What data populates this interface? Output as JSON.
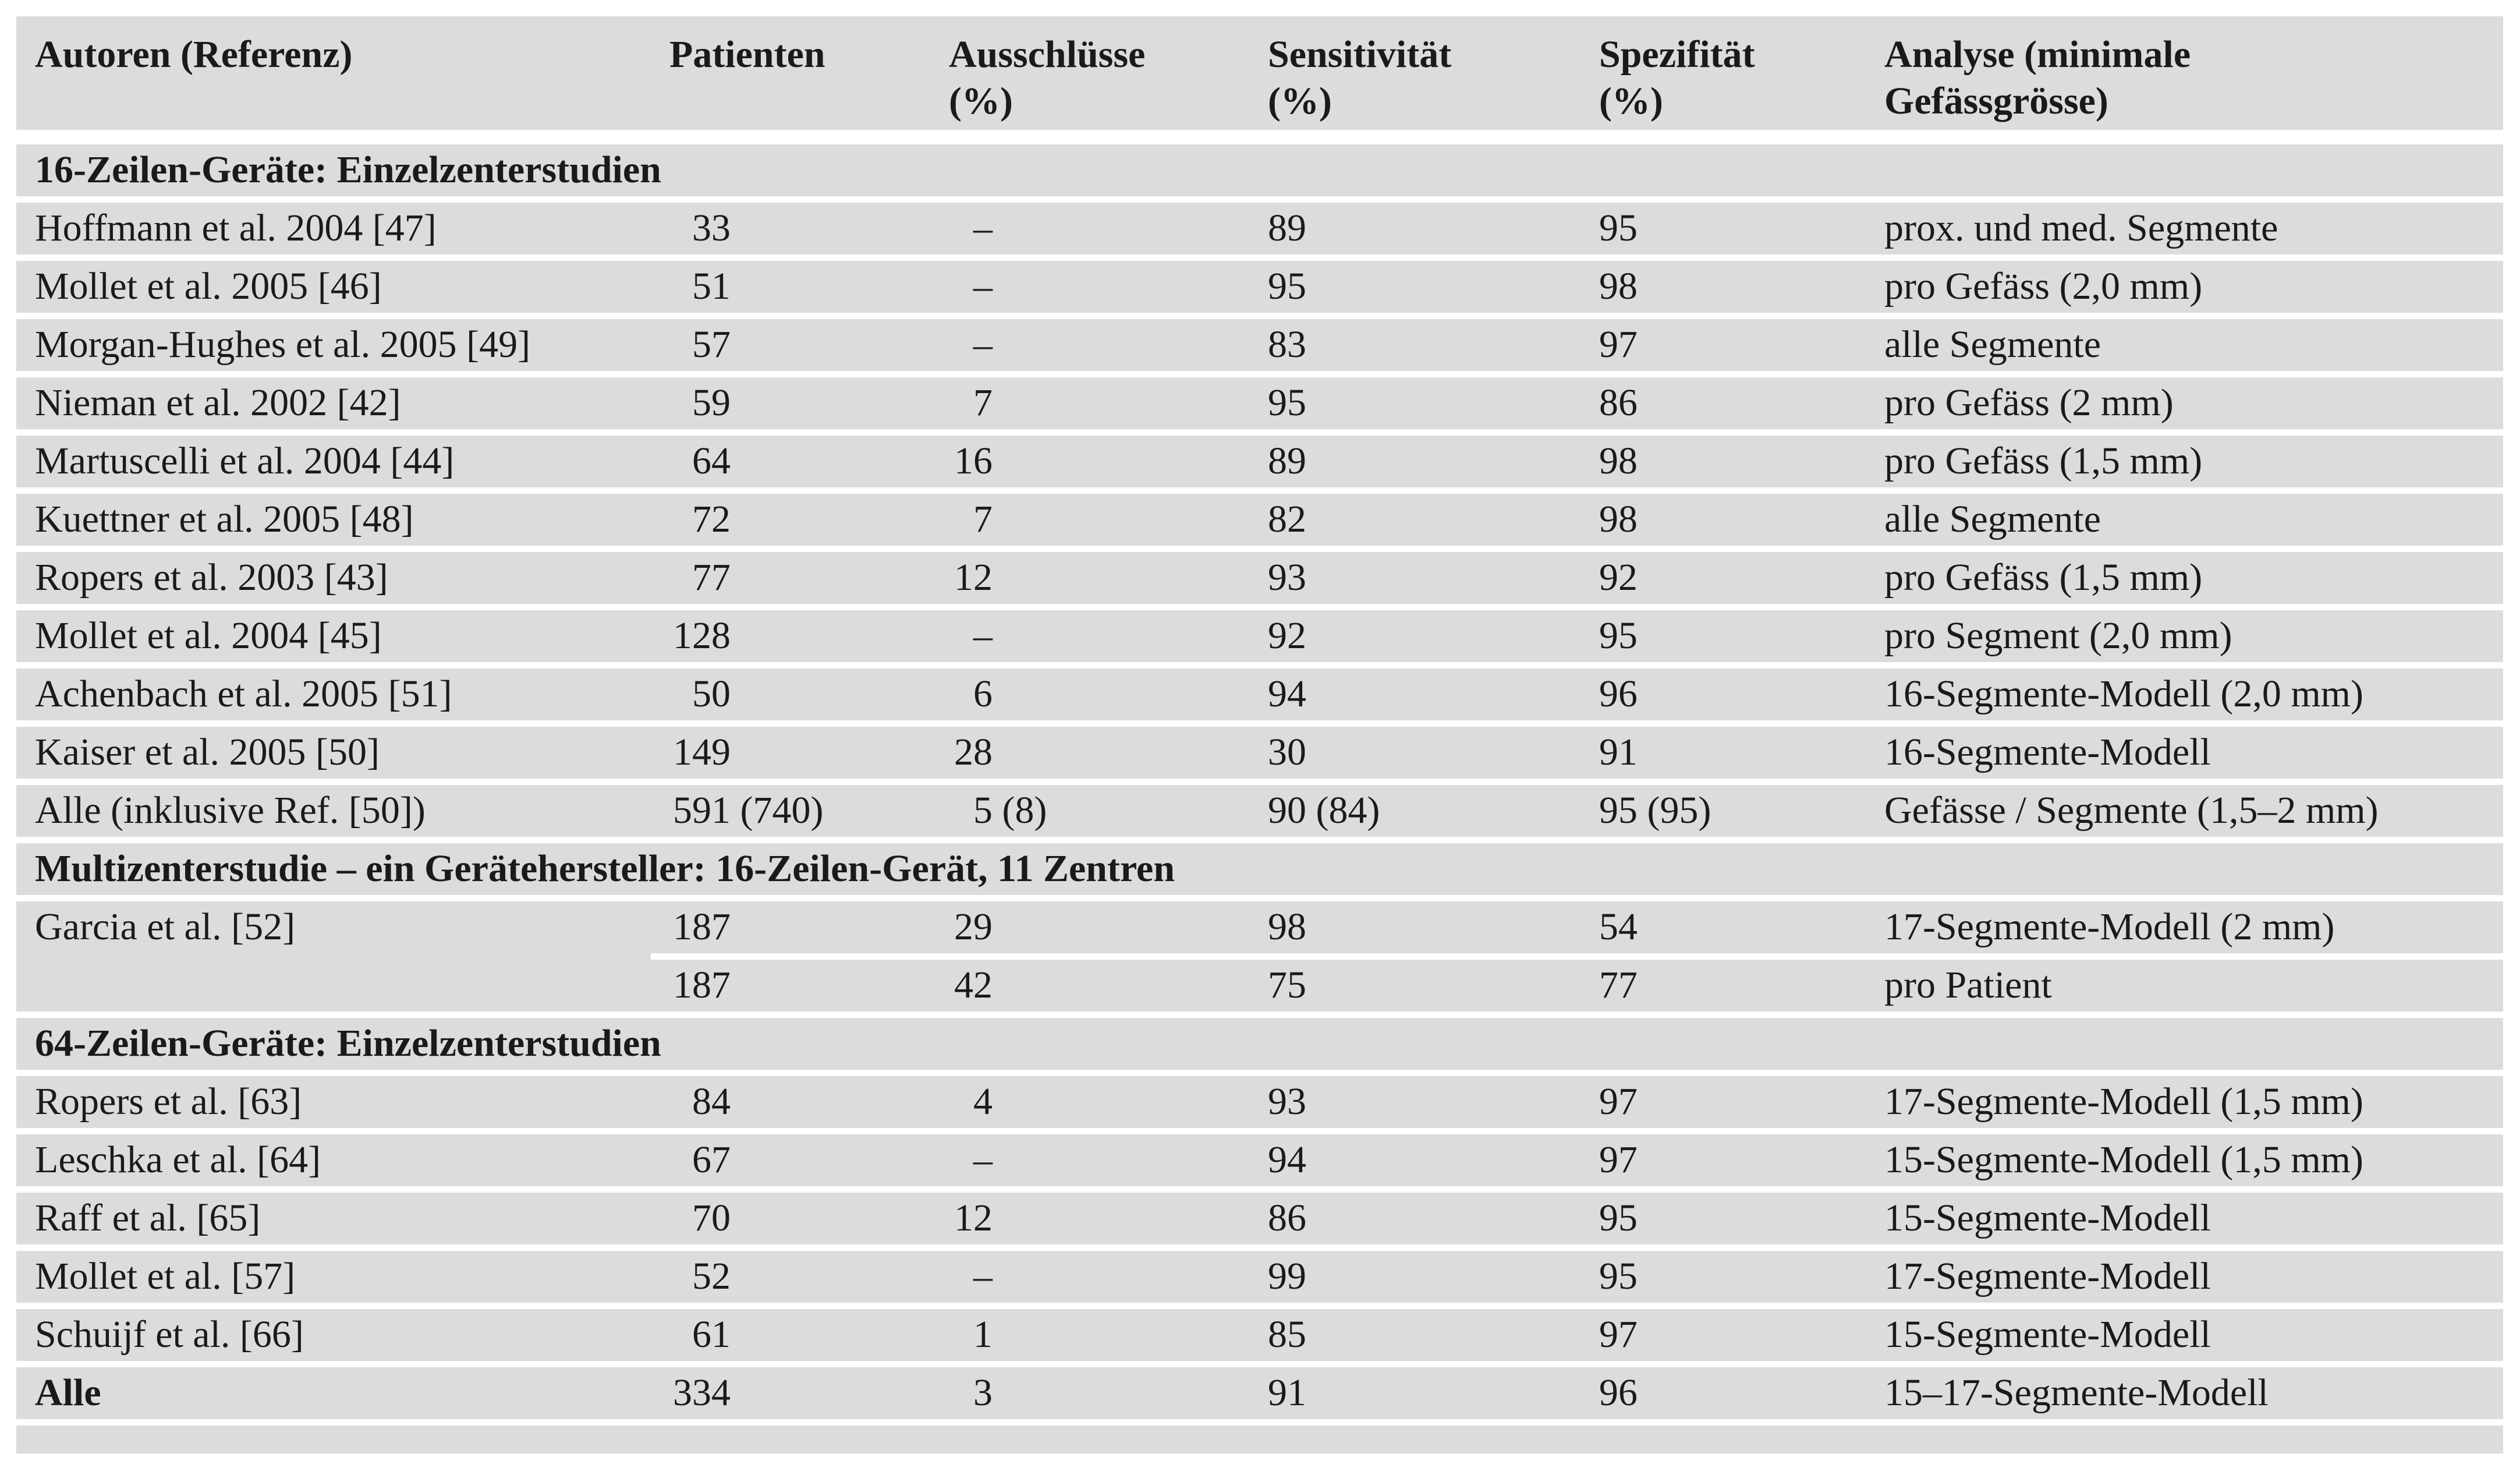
{
  "colors": {
    "row_background": "#dcdcdc",
    "page_background": "#ffffff",
    "text": "#1a1a1a"
  },
  "table": {
    "header": [
      {
        "lines": [
          "Autoren (Referenz)"
        ]
      },
      {
        "lines": [
          "Patienten"
        ]
      },
      {
        "lines": [
          "Ausschlüsse",
          "(%)"
        ]
      },
      {
        "lines": [
          "Sensitivität",
          "(%)"
        ]
      },
      {
        "lines": [
          "Spezifität",
          "(%)"
        ]
      },
      {
        "lines": [
          "Analyse (minimale",
          "Gefässgrösse)"
        ]
      }
    ],
    "rows": [
      {
        "type": "section",
        "label": "16-Zeilen-Geräte: Einzelzenterstudien"
      },
      {
        "type": "data",
        "author": "Hoffmann et al. 2004 [47]",
        "patienten": {
          "main": "33",
          "suffix": ""
        },
        "ausschluesse": {
          "main": "–",
          "suffix": ""
        },
        "sensitivitaet": "89",
        "spezifitaet": "95",
        "analyse": "prox. und med. Segmente"
      },
      {
        "type": "data",
        "author": "Mollet et al. 2005 [46]",
        "patienten": {
          "main": "51",
          "suffix": ""
        },
        "ausschluesse": {
          "main": "–",
          "suffix": ""
        },
        "sensitivitaet": "95",
        "spezifitaet": "98",
        "analyse": "pro Gefäss (2,0 mm)"
      },
      {
        "type": "data",
        "author": "Morgan-Hughes et al. 2005 [49]",
        "patienten": {
          "main": "57",
          "suffix": ""
        },
        "ausschluesse": {
          "main": "–",
          "suffix": ""
        },
        "sensitivitaet": "83",
        "spezifitaet": "97",
        "analyse": "alle Segmente"
      },
      {
        "type": "data",
        "author": "Nieman et al. 2002 [42]",
        "patienten": {
          "main": "59",
          "suffix": ""
        },
        "ausschluesse": {
          "main": "7",
          "suffix": ""
        },
        "sensitivitaet": "95",
        "spezifitaet": "86",
        "analyse": "pro Gefäss (2 mm)"
      },
      {
        "type": "data",
        "author": "Martuscelli et al. 2004 [44]",
        "patienten": {
          "main": "64",
          "suffix": ""
        },
        "ausschluesse": {
          "main": "16",
          "suffix": ""
        },
        "sensitivitaet": "89",
        "spezifitaet": "98",
        "analyse": "pro Gefäss (1,5 mm)"
      },
      {
        "type": "data",
        "author": "Kuettner et al. 2005 [48]",
        "patienten": {
          "main": "72",
          "suffix": ""
        },
        "ausschluesse": {
          "main": "7",
          "suffix": ""
        },
        "sensitivitaet": "82",
        "spezifitaet": "98",
        "analyse": "alle Segmente"
      },
      {
        "type": "data",
        "author": "Ropers et al. 2003 [43]",
        "patienten": {
          "main": "77",
          "suffix": ""
        },
        "ausschluesse": {
          "main": "12",
          "suffix": ""
        },
        "sensitivitaet": "93",
        "spezifitaet": "92",
        "analyse": "pro Gefäss (1,5 mm)"
      },
      {
        "type": "data",
        "author": "Mollet et al. 2004 [45]",
        "patienten": {
          "main": "128",
          "suffix": ""
        },
        "ausschluesse": {
          "main": "–",
          "suffix": ""
        },
        "sensitivitaet": "92",
        "spezifitaet": "95",
        "analyse": "pro Segment (2,0 mm)"
      },
      {
        "type": "data",
        "author": "Achenbach et al. 2005 [51]",
        "patienten": {
          "main": "50",
          "suffix": ""
        },
        "ausschluesse": {
          "main": "6",
          "suffix": ""
        },
        "sensitivitaet": "94",
        "spezifitaet": "96",
        "analyse": "16-Segmente-Modell (2,0 mm)"
      },
      {
        "type": "data",
        "author": "Kaiser et al. 2005 [50]",
        "patienten": {
          "main": "149",
          "suffix": ""
        },
        "ausschluesse": {
          "main": "28",
          "suffix": ""
        },
        "sensitivitaet": "30",
        "spezifitaet": "91",
        "analyse": "16-Segmente-Modell"
      },
      {
        "type": "data",
        "author": "Alle (inklusive Ref. [50])",
        "patienten": {
          "main": "591",
          "suffix": " (740)"
        },
        "ausschluesse": {
          "main": "5",
          "suffix": " (8)"
        },
        "sensitivitaet": "90 (84)",
        "spezifitaet": "95 (95)",
        "analyse": "Gefässe / Segmente (1,5–2 mm)"
      },
      {
        "type": "section",
        "label": "Multizenterstudie – ein Gerätehersteller: 16-Zeilen-Gerät, 11 Zentren"
      },
      {
        "type": "data",
        "author": "Garcia et al. [52]",
        "patienten": {
          "main": "187",
          "suffix": ""
        },
        "ausschluesse": {
          "main": "29",
          "suffix": ""
        },
        "sensitivitaet": "98",
        "spezifitaet": "54",
        "analyse": "17-Segmente-Modell (2 mm)"
      },
      {
        "type": "data",
        "partial_separator_above": true,
        "author": "",
        "patienten": {
          "main": "187",
          "suffix": ""
        },
        "ausschluesse": {
          "main": "42",
          "suffix": ""
        },
        "sensitivitaet": "75",
        "spezifitaet": "77",
        "analyse": "pro Patient"
      },
      {
        "type": "section",
        "label": "64-Zeilen-Geräte: Einzelzenterstudien"
      },
      {
        "type": "data",
        "author": "Ropers et al. [63]",
        "patienten": {
          "main": "84",
          "suffix": ""
        },
        "ausschluesse": {
          "main": "4",
          "suffix": ""
        },
        "sensitivitaet": "93",
        "spezifitaet": "97",
        "analyse": "17-Segmente-Modell (1,5 mm)"
      },
      {
        "type": "data",
        "author": "Leschka et al. [64]",
        "patienten": {
          "main": "67",
          "suffix": ""
        },
        "ausschluesse": {
          "main": "–",
          "suffix": ""
        },
        "sensitivitaet": "94",
        "spezifitaet": "97",
        "analyse": "15-Segmente-Modell (1,5 mm)"
      },
      {
        "type": "data",
        "author": "Raff et al. [65]",
        "patienten": {
          "main": "70",
          "suffix": ""
        },
        "ausschluesse": {
          "main": "12",
          "suffix": ""
        },
        "sensitivitaet": "86",
        "spezifitaet": "95",
        "analyse": "15-Segmente-Modell"
      },
      {
        "type": "data",
        "author": "Mollet et al. [57]",
        "patienten": {
          "main": "52",
          "suffix": ""
        },
        "ausschluesse": {
          "main": "–",
          "suffix": ""
        },
        "sensitivitaet": "99",
        "spezifitaet": "95",
        "analyse": "17-Segmente-Modell"
      },
      {
        "type": "data",
        "author": "Schuijf et al. [66]",
        "patienten": {
          "main": "61",
          "suffix": ""
        },
        "ausschluesse": {
          "main": "1",
          "suffix": ""
        },
        "sensitivitaet": "85",
        "spezifitaet": "97",
        "analyse": "15-Segmente-Modell"
      },
      {
        "type": "data",
        "author_bold": true,
        "author": "Alle",
        "patienten": {
          "main": "334",
          "suffix": ""
        },
        "ausschluesse": {
          "main": "3",
          "suffix": ""
        },
        "sensitivitaet": "91",
        "spezifitaet": "96",
        "analyse": "15–17-Segmente-Modell"
      }
    ]
  }
}
